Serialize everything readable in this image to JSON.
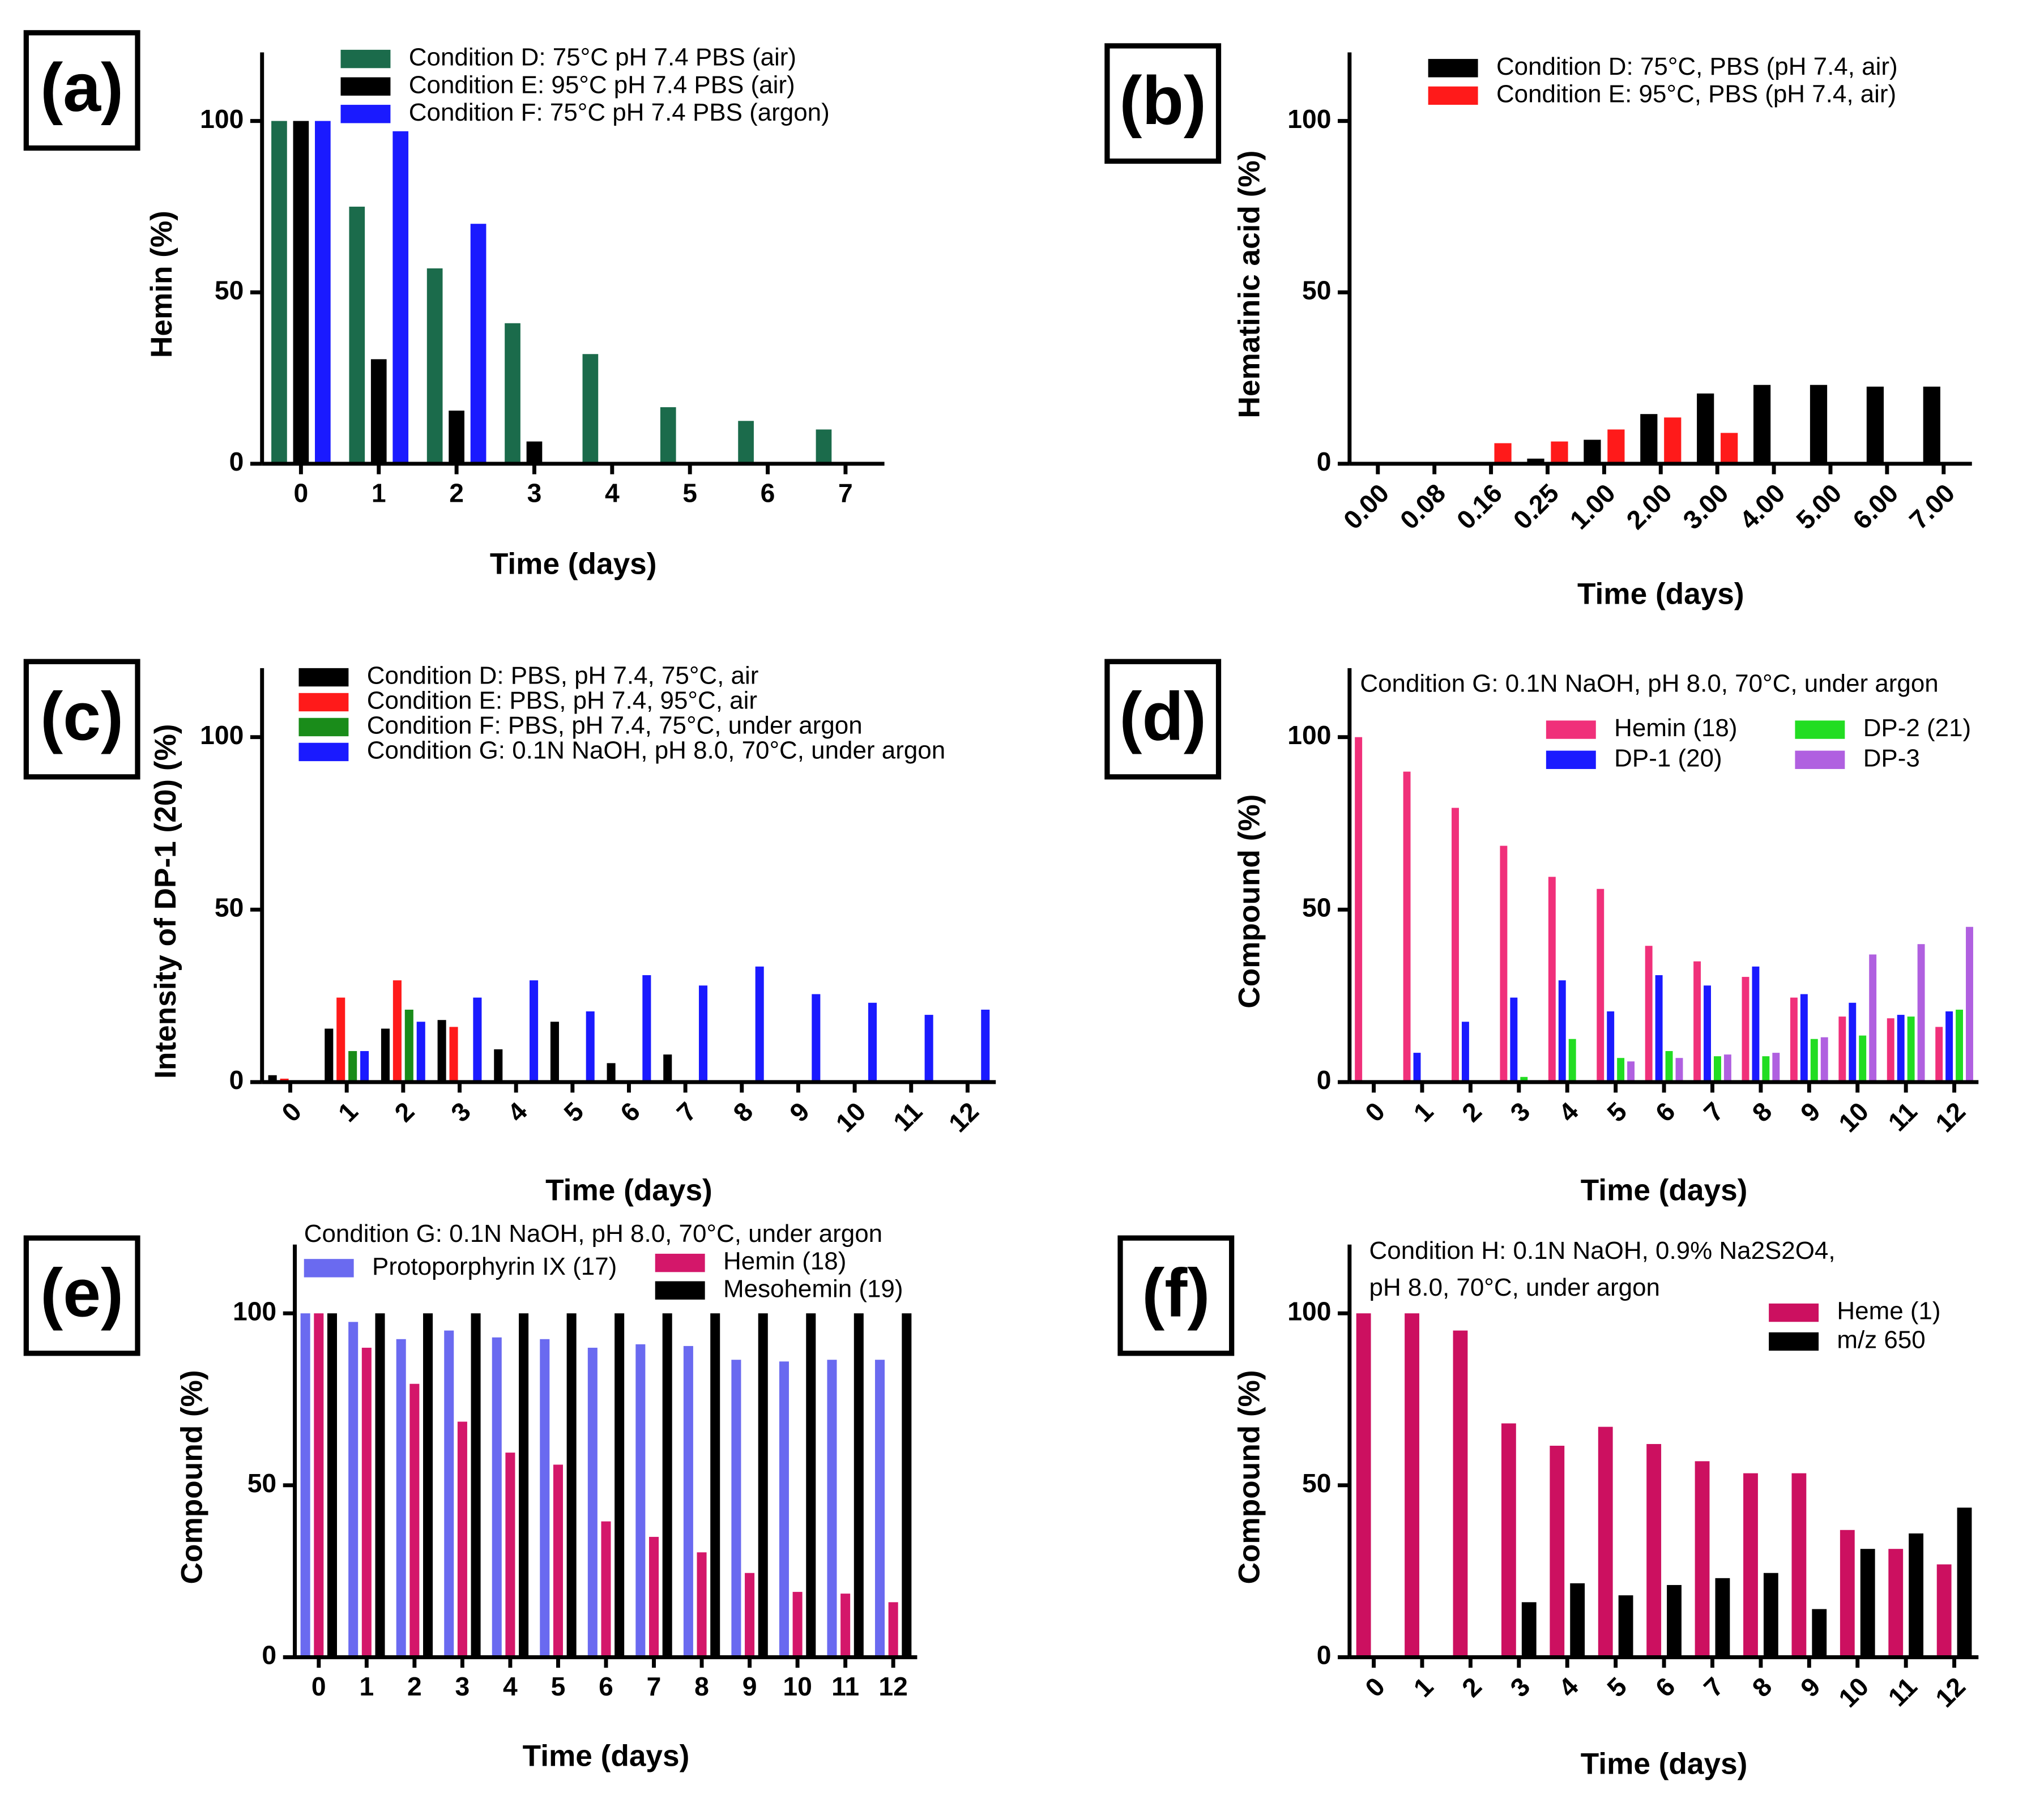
{
  "chart_data": [
    {
      "type": "bar",
      "panel_label": "(a)",
      "ylabel": "Hemin (%)",
      "xlabel": "Time (days)",
      "categories": [
        "0",
        "1",
        "2",
        "3",
        "4",
        "5",
        "6",
        "7"
      ],
      "ylim": [
        0,
        120
      ],
      "yticks": [
        0,
        50,
        100
      ],
      "series": [
        {
          "name": "Condition D: 75°C pH 7.4 PBS (air)",
          "color": "#1b6b4b",
          "values": [
            100,
            75,
            57,
            41,
            32,
            16.5,
            12.5,
            10
          ]
        },
        {
          "name": "Condition E: 95°C pH 7.4 PBS (air)",
          "color": "#000000",
          "values": [
            100,
            30.5,
            15.5,
            6.5,
            null,
            null,
            null,
            null
          ]
        },
        {
          "name": "Condition F: 75°C pH 7.4 PBS (argon)",
          "color": "#1a1aff",
          "values": [
            100,
            97,
            70,
            null,
            null,
            null,
            null,
            null
          ]
        }
      ]
    },
    {
      "type": "bar",
      "panel_label": "(b)",
      "ylabel": "Hematinic acid (%)",
      "xlabel": "Time (days)",
      "categories": [
        "0.00",
        "0.08",
        "0.16",
        "0.25",
        "1.00",
        "2.00",
        "3.00",
        "4.00",
        "5.00",
        "6.00",
        "7.00"
      ],
      "ylim": [
        0,
        120
      ],
      "yticks": [
        0,
        50,
        100
      ],
      "series": [
        {
          "name": "Condition D: 75°C, PBS (pH 7.4, air)",
          "color": "#000000",
          "values": [
            0,
            0,
            0,
            1.5,
            7,
            14.5,
            20.5,
            23,
            23,
            22.5,
            22.5
          ]
        },
        {
          "name": "Condition E: 95°C, PBS (pH 7.4, air)",
          "color": "#ff1a1a",
          "values": [
            0,
            0,
            6,
            6.5,
            10,
            13.5,
            9,
            null,
            null,
            null,
            null
          ]
        }
      ]
    },
    {
      "type": "bar",
      "panel_label": "(c)",
      "ylabel": "Intensity of DP-1 (20) (%)",
      "xlabel": "Time (days)",
      "categories": [
        "0",
        "1",
        "2",
        "3",
        "4",
        "5",
        "6",
        "7",
        "8",
        "9",
        "10",
        "11",
        "12"
      ],
      "ylim": [
        0,
        120
      ],
      "yticks": [
        0,
        50,
        100
      ],
      "series": [
        {
          "name": "Condition D: PBS, pH 7.4, 75°C, air",
          "color": "#000000",
          "values": [
            2,
            15.5,
            15.5,
            18,
            9.5,
            17.5,
            5.5,
            8,
            null,
            null,
            null,
            null,
            null
          ]
        },
        {
          "name": "Condition E: PBS, pH 7.4, 95°C, air",
          "color": "#ff1a1a",
          "values": [
            1,
            24.5,
            29.5,
            16,
            null,
            null,
            null,
            null,
            null,
            null,
            null,
            null,
            null
          ]
        },
        {
          "name": "Condition F: PBS, pH 7.4, 75°C, under argon",
          "color": "#1a8c1a",
          "values": [
            null,
            9,
            21,
            null,
            null,
            null,
            null,
            null,
            null,
            null,
            null,
            null,
            null
          ]
        },
        {
          "name": "Condition G: 0.1N NaOH, pH 8.0, 70°C, under argon",
          "color": "#1a1aff",
          "values": [
            null,
            9,
            17.5,
            24.5,
            29.5,
            20.5,
            31,
            28,
            33.5,
            25.5,
            23,
            19.5,
            21
          ]
        }
      ]
    },
    {
      "type": "bar",
      "panel_label": "(d)",
      "ylabel": "Compound (%)",
      "xlabel": "Time (days)",
      "annotation": [
        "Condition G: 0.1N NaOH, pH 8.0, 70°C, under argon"
      ],
      "categories": [
        "0",
        "1",
        "2",
        "3",
        "4",
        "5",
        "6",
        "7",
        "8",
        "9",
        "10",
        "11",
        "12"
      ],
      "ylim": [
        0,
        120
      ],
      "yticks": [
        0,
        50,
        100
      ],
      "series": [
        {
          "name": "Hemin (18)",
          "color": "#f0307a",
          "values": [
            100,
            90,
            79.5,
            68.5,
            59.5,
            56,
            39.5,
            35,
            30.5,
            24.5,
            19,
            18.5,
            16
          ]
        },
        {
          "name": "DP-1 (20)",
          "color": "#1a1aff",
          "values": [
            null,
            8.5,
            17.5,
            24.5,
            29.5,
            20.5,
            31,
            28,
            33.5,
            25.5,
            23,
            19.5,
            20.5
          ]
        },
        {
          "name": "DP-2 (21)",
          "color": "#22dd22",
          "values": [
            null,
            null,
            null,
            1.5,
            12.5,
            7,
            9,
            7.5,
            7.5,
            12.5,
            13.5,
            19,
            21
          ]
        },
        {
          "name": "DP-3",
          "color": "#b060e0",
          "values": [
            null,
            null,
            null,
            null,
            null,
            6,
            7,
            8,
            8.5,
            13,
            37,
            40,
            45
          ]
        }
      ]
    },
    {
      "type": "bar",
      "panel_label": "(e)",
      "ylabel": "Compound (%)",
      "xlabel": "Time (days)",
      "annotation": [
        "Condition G: 0.1N NaOH, pH 8.0, 70°C, under argon"
      ],
      "categories": [
        "0",
        "1",
        "2",
        "3",
        "4",
        "5",
        "6",
        "7",
        "8",
        "9",
        "10",
        "11",
        "12"
      ],
      "ylim": [
        0,
        120
      ],
      "yticks": [
        0,
        50,
        100
      ],
      "series": [
        {
          "name": "Protoporphyrin IX (17)",
          "color": "#6a6af0",
          "values": [
            100,
            97.5,
            92.5,
            95,
            93,
            92.5,
            90,
            91,
            90.5,
            86.5,
            86,
            86.5,
            86.5
          ]
        },
        {
          "name": "Hemin (18)",
          "color": "#d4176a",
          "values": [
            100,
            90,
            79.5,
            68.5,
            59.5,
            56,
            39.5,
            35,
            30.5,
            24.5,
            19,
            18.5,
            16
          ]
        },
        {
          "name": "Mesohemin (19)",
          "color": "#000000",
          "values": [
            100,
            100,
            100,
            100,
            100,
            100,
            100,
            100,
            100,
            100,
            100,
            100,
            100
          ]
        }
      ]
    },
    {
      "type": "bar",
      "panel_label": "(f)",
      "ylabel": "Compound (%)",
      "xlabel": "Time (days)",
      "annotation": [
        "Condition H: 0.1N NaOH, 0.9% Na2S2O4,",
        "pH 8.0, 70°C, under argon"
      ],
      "categories": [
        "0",
        "1",
        "2",
        "3",
        "4",
        "5",
        "6",
        "7",
        "8",
        "9",
        "10",
        "11",
        "12"
      ],
      "ylim": [
        0,
        120
      ],
      "yticks": [
        0,
        50,
        100
      ],
      "series": [
        {
          "name": "Heme (1)",
          "color": "#cc1060",
          "values": [
            100,
            100,
            95,
            68,
            61.5,
            67,
            62,
            57,
            53.5,
            53.5,
            37,
            31.5,
            27
          ]
        },
        {
          "name": "m/z 650",
          "color": "#000000",
          "values": [
            null,
            null,
            null,
            16,
            21.5,
            18,
            21,
            23,
            24.5,
            14,
            31.5,
            36,
            43.5
          ]
        }
      ]
    }
  ]
}
